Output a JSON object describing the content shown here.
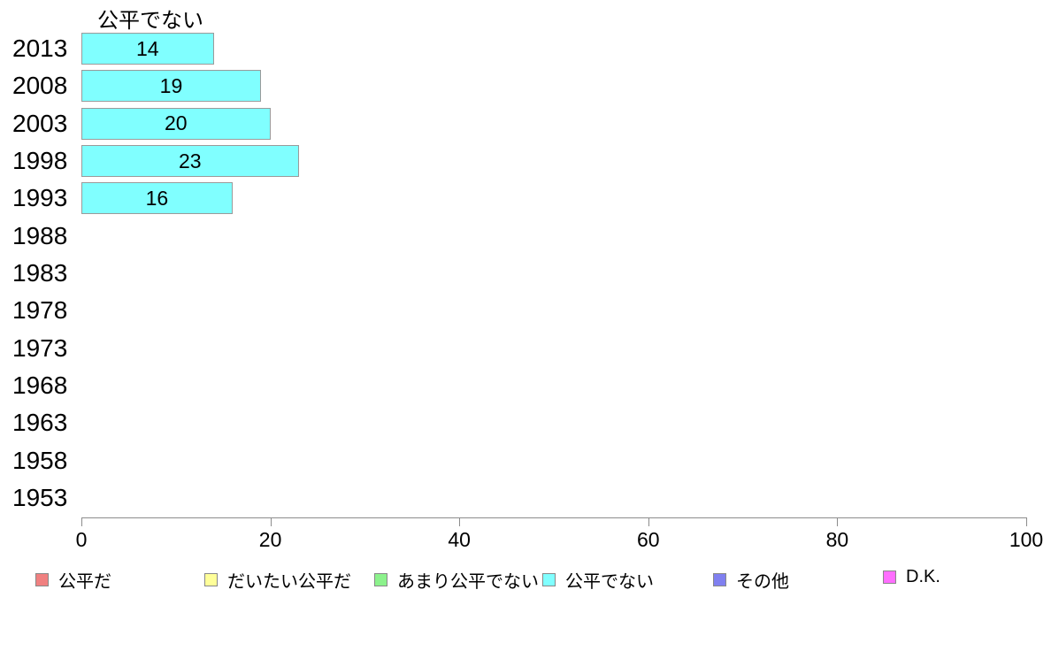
{
  "chart_data": {
    "type": "bar",
    "orientation": "horizontal",
    "title": "公平でない",
    "categories": [
      "2013",
      "2008",
      "2003",
      "1998",
      "1993",
      "1988",
      "1983",
      "1978",
      "1973",
      "1968",
      "1963",
      "1958",
      "1953"
    ],
    "values": [
      14,
      19,
      20,
      23,
      16,
      null,
      null,
      null,
      null,
      null,
      null,
      null,
      null
    ],
    "xlabel": "",
    "ylabel": "",
    "xlim": [
      0,
      100
    ],
    "x_ticks": [
      0,
      20,
      40,
      60,
      80,
      100
    ],
    "grid": "off",
    "bar_color": "#80FFFF",
    "bar_border_color": "#9a9a9a",
    "axis_color": "#8c8c8c",
    "legend_position": "bottom",
    "legend": [
      {
        "label": "公平だ",
        "color": "#F08080"
      },
      {
        "label": "だいたい公平だ",
        "color": "#FFFF99"
      },
      {
        "label": "あまり公平でない",
        "color": "#8CF28C"
      },
      {
        "label": "公平でない",
        "color": "#80FFFF"
      },
      {
        "label": "その他",
        "color": "#8080F0"
      },
      {
        "label": "D.K.",
        "color": "#FF6EFF"
      }
    ]
  }
}
